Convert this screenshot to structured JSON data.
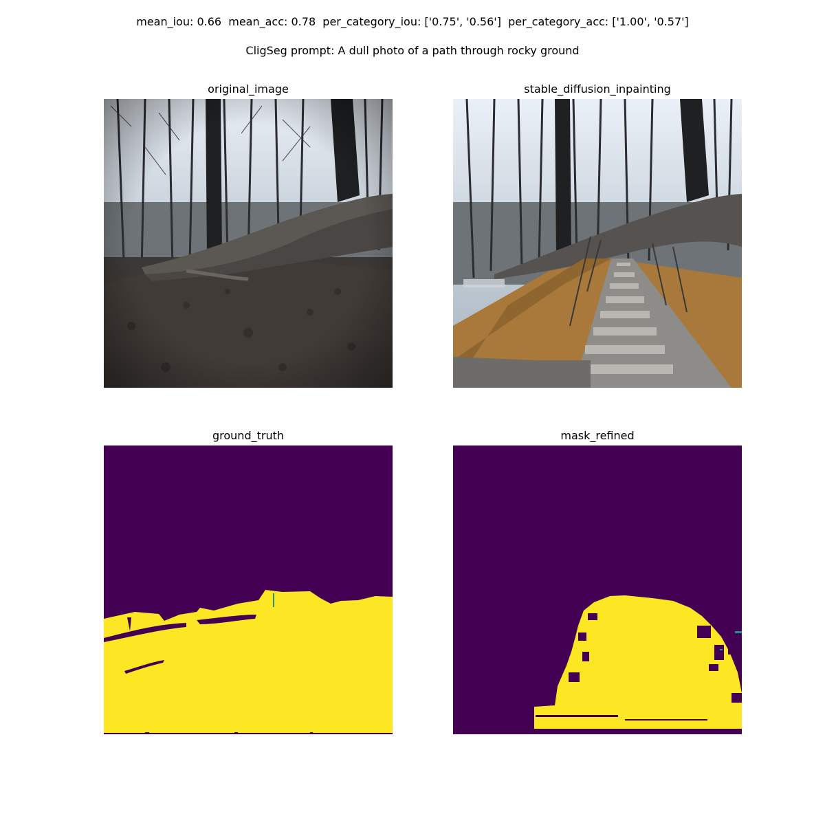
{
  "header": {
    "metrics": "mean_iou: 0.66  mean_acc: 0.78  per_category_iou: ['0.75', '0.56']  per_category_acc: ['1.00', '0.57']",
    "prompt": "CligSeg prompt: A dull photo of a path through rocky ground"
  },
  "panels": [
    {
      "title": "original_image"
    },
    {
      "title": "stable_diffusion_inpainting"
    },
    {
      "title": "ground_truth"
    },
    {
      "title": "mask_refined"
    }
  ],
  "colors": {
    "mask_background": "#440154",
    "mask_foreground": "#fde725",
    "mask_edge": "#21918c"
  }
}
